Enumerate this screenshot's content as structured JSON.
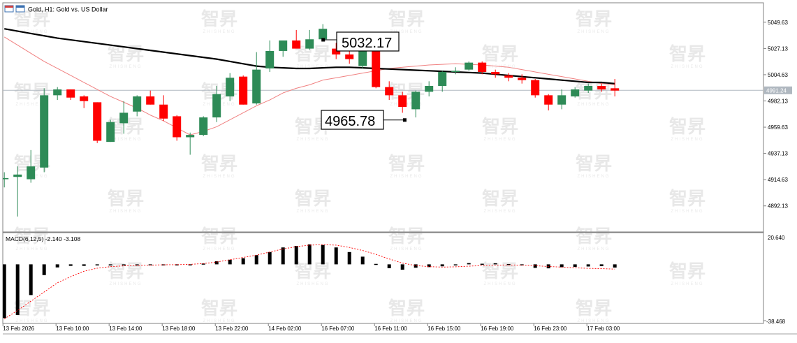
{
  "header": {
    "title": "Gold, H1:  Gold vs. US Dollar"
  },
  "watermark": {
    "text": "智昇",
    "subtext": "ZHISHENG"
  },
  "colors": {
    "bull": "#2e8b57",
    "bear": "#ff0000",
    "ma_slow": "#000000",
    "ma_fast": "#f08080",
    "grid": "#d8d8d8",
    "price_line": "#b0b8c0",
    "panel_border": "#808080"
  },
  "chart_data": [
    {
      "type": "candlestick",
      "symbol": "Gold",
      "timeframe": "H1",
      "ylim": [
        4869.8,
        5066.3
      ],
      "y_ticks": [
        5049.63,
        5027.13,
        5004.63,
        4982.13,
        4959.63,
        4937.13,
        4914.63,
        4892.13
      ],
      "y_tick_labels": [
        "5049.63",
        "5027.13",
        "5004.63",
        "4982.13",
        "4959.63",
        "4937.13",
        "4914.63",
        "4892.13"
      ],
      "current_price": 4991.24,
      "current_price_label": "4991.24",
      "x_tick_labels": [
        "13 Feb 2026",
        "13 Feb 10:00",
        "13 Feb 14:00",
        "13 Feb 18:00",
        "13 Feb 22:00",
        "14 Feb 02:00",
        "16 Feb 07:00",
        "16 Feb 11:00",
        "16 Feb 15:00",
        "16 Feb 19:00",
        "16 Feb 23:00",
        "17 Feb 03:00"
      ],
      "x_tick_index": [
        0,
        4,
        8,
        12,
        16,
        20,
        24,
        28,
        32,
        36,
        40,
        44
      ],
      "candles": [
        {
          "o": 4915,
          "h": 4921,
          "l": 4908,
          "c": 4916
        },
        {
          "o": 4917,
          "h": 4926,
          "l": 4883,
          "c": 4919
        },
        {
          "o": 4915,
          "h": 4940,
          "l": 4912,
          "c": 4926
        },
        {
          "o": 4925,
          "h": 4993,
          "l": 4921,
          "c": 4987
        },
        {
          "o": 4987,
          "h": 4994,
          "l": 4983,
          "c": 4992
        },
        {
          "o": 4992,
          "h": 4992,
          "l": 4983,
          "c": 4985
        },
        {
          "o": 4986,
          "h": 4987,
          "l": 4976,
          "c": 4982
        },
        {
          "o": 4981,
          "h": 4981,
          "l": 4946,
          "c": 4948
        },
        {
          "o": 4947,
          "h": 4966,
          "l": 4947,
          "c": 4964
        },
        {
          "o": 4963,
          "h": 4982,
          "l": 4954,
          "c": 4972
        },
        {
          "o": 4973,
          "h": 4987,
          "l": 4969,
          "c": 4986
        },
        {
          "o": 4986,
          "h": 4991,
          "l": 4979,
          "c": 4979
        },
        {
          "o": 4979,
          "h": 4987,
          "l": 4965,
          "c": 4967
        },
        {
          "o": 4969,
          "h": 4970,
          "l": 4948,
          "c": 4951
        },
        {
          "o": 4951,
          "h": 4955,
          "l": 4936,
          "c": 4953
        },
        {
          "o": 4953,
          "h": 4969,
          "l": 4952,
          "c": 4968
        },
        {
          "o": 4968,
          "h": 4995,
          "l": 4964,
          "c": 4988
        },
        {
          "o": 4986,
          "h": 5006,
          "l": 4982,
          "c": 5002
        },
        {
          "o": 5003,
          "h": 5004,
          "l": 4979,
          "c": 4979
        },
        {
          "o": 4980,
          "h": 5024,
          "l": 4979,
          "c": 5009
        },
        {
          "o": 5010,
          "h": 5034,
          "l": 5007,
          "c": 5025
        },
        {
          "o": 5025,
          "h": 5033,
          "l": 5020,
          "c": 5034
        },
        {
          "o": 5034,
          "h": 5043,
          "l": 5028,
          "c": 5027
        },
        {
          "o": 5027,
          "h": 5043,
          "l": 5026,
          "c": 5035
        },
        {
          "o": 5035,
          "h": 5048,
          "l": 5034,
          "c": 5044
        },
        {
          "o": 5027,
          "h": 5032,
          "l": 5018,
          "c": 5022
        },
        {
          "o": 5022,
          "h": 5026,
          "l": 5014,
          "c": 5018
        },
        {
          "o": 5012,
          "h": 5030,
          "l": 5010,
          "c": 5028
        },
        {
          "o": 5030,
          "h": 5031,
          "l": 4993,
          "c": 4994
        },
        {
          "o": 4994,
          "h": 4999,
          "l": 4983,
          "c": 4987
        },
        {
          "o": 4987,
          "h": 4990,
          "l": 4972,
          "c": 4977
        },
        {
          "o": 4975,
          "h": 4991,
          "l": 4968,
          "c": 4990
        },
        {
          "o": 4990,
          "h": 4999,
          "l": 4986,
          "c": 4995
        },
        {
          "o": 4995,
          "h": 5008,
          "l": 4990,
          "c": 5007
        },
        {
          "o": 5007,
          "h": 5011,
          "l": 5005,
          "c": 5008
        },
        {
          "o": 5009,
          "h": 5016,
          "l": 5008,
          "c": 5015
        },
        {
          "o": 5015,
          "h": 5016,
          "l": 5005,
          "c": 5007
        },
        {
          "o": 5007,
          "h": 5009,
          "l": 5002,
          "c": 5005
        },
        {
          "o": 5004,
          "h": 5006,
          "l": 4999,
          "c": 5002
        },
        {
          "o": 5002,
          "h": 5005,
          "l": 4997,
          "c": 5000
        },
        {
          "o": 5000,
          "h": 5001,
          "l": 4985,
          "c": 4987
        },
        {
          "o": 4987,
          "h": 4988,
          "l": 4974,
          "c": 4979
        },
        {
          "o": 4979,
          "h": 4992,
          "l": 4975,
          "c": 4987
        },
        {
          "o": 4986,
          "h": 4994,
          "l": 4985,
          "c": 4992
        },
        {
          "o": 4991,
          "h": 4997,
          "l": 4989,
          "c": 4995
        },
        {
          "o": 4995,
          "h": 4997,
          "l": 4990,
          "c": 4992
        },
        {
          "o": 4993,
          "h": 5001,
          "l": 4986,
          "c": 4991
        }
      ],
      "ma_slow": [
        5044,
        5042,
        5040,
        5038,
        5036,
        5034.5,
        5033,
        5031.5,
        5030,
        5028.5,
        5027,
        5025.5,
        5024,
        5022.5,
        5021,
        5019.5,
        5018,
        5016,
        5014,
        5012,
        5011,
        5010.5,
        5010,
        5010,
        5010.5,
        5011,
        5011,
        5010.5,
        5010,
        5009.5,
        5009,
        5008.5,
        5008,
        5007.5,
        5007,
        5006.5,
        5006,
        5005,
        5004,
        5003,
        5002,
        5001,
        5000,
        4999,
        4998,
        4998,
        4997
      ],
      "ma_fast": [
        5037,
        5030,
        5023,
        5016,
        5010,
        5004,
        4998,
        4992,
        4986,
        4981,
        4976,
        4970,
        4965,
        4959,
        4953,
        4956,
        4960,
        4966,
        4972,
        4978,
        4983,
        4989,
        4993,
        4996,
        5000,
        5002,
        5004,
        5006,
        5008,
        5010,
        5011,
        5012,
        5013,
        5013.5,
        5014,
        5013.5,
        5013,
        5012,
        5011,
        5009,
        5007,
        5005,
        5003,
        5001,
        4999,
        4997,
        4996
      ],
      "annotations": [
        {
          "label": "5032.17",
          "value": 5032.17,
          "index": 24.5
        },
        {
          "label": "4965.78",
          "value": 4965.78,
          "index": 30.8
        }
      ]
    },
    {
      "type": "bar",
      "title": "MACD(6,12,5) -2.140 -3.108",
      "ylim": [
        -38.468,
        20.64
      ],
      "y_tick_labels": [
        "20.640",
        "-38.468"
      ],
      "histogram": [
        -35,
        -33,
        -20,
        -7,
        -2,
        -1,
        -1,
        -0.7,
        -0.5,
        -0.3,
        0,
        0,
        -0.3,
        -0.4,
        -0.2,
        0.5,
        2,
        3,
        4,
        6,
        8,
        11,
        12,
        13,
        12.6,
        11,
        8,
        5,
        0.3,
        -2.5,
        -3.5,
        -2.2,
        -1.8,
        -1.3,
        -0.7,
        0.8,
        0.4,
        0.7,
        0.2,
        -0.2,
        -2.3,
        -2.6,
        -1.9,
        -1.7,
        -1.4,
        -1.2,
        -2.1
      ],
      "signal": [
        -35.5,
        -30,
        -24,
        -18,
        -12,
        -8,
        -4.5,
        -2.5,
        -1.5,
        -1,
        -0.7,
        -0.5,
        -0.3,
        -0.2,
        0,
        0.5,
        1.5,
        3,
        4.5,
        6,
        8,
        10,
        11.5,
        12.5,
        12.8,
        12.5,
        11,
        9,
        6.5,
        3.5,
        0.8,
        -0.8,
        -1.5,
        -1.8,
        -1.6,
        -1.2,
        -0.8,
        -0.5,
        -0.4,
        -0.5,
        -0.9,
        -1.4,
        -1.8,
        -2.3,
        -2.6,
        -2.8,
        -3.1
      ]
    }
  ]
}
